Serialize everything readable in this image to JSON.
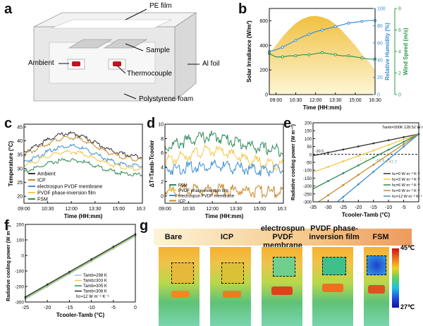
{
  "panels": {
    "a": {
      "letter": "a",
      "labels": {
        "pe_film": "PE film",
        "sample": "Sample",
        "ambient": "Ambient",
        "thermocouple": "Thermocouple",
        "al_foil": "Al foil",
        "foam": "Polystyrene foam"
      }
    },
    "b": {
      "letter": "b"
    },
    "c": {
      "letter": "c"
    },
    "d": {
      "letter": "d"
    },
    "e": {
      "letter": "e"
    },
    "f": {
      "letter": "f"
    },
    "g": {
      "letter": "g",
      "samples": [
        "Bare",
        "ICP",
        "electrospun PVDF membrane",
        "PVDF phase-inversion film",
        "FSM"
      ],
      "colorbar_max": "45℃",
      "colorbar_min": "27℃"
    }
  },
  "colors": {
    "ambient": "#333333",
    "icp": "#c8892c",
    "electrospun": "#3d8fd1",
    "pvdf": "#f2c84b",
    "fsm": "#2e8b57",
    "irradiance": "#f0c040",
    "humidity": "#3b8fd1",
    "wind": "#2e9a4e"
  },
  "chart_data": [
    {
      "id": "b",
      "type": "area",
      "xlabel": "Time (HH:mm)",
      "xticks": [
        "09:00",
        "10:30",
        "12:00",
        "13:30",
        "15:00",
        "16:30"
      ],
      "ylabel_left": "Solar Irradiance (W/m²)",
      "ylim_left": [
        0,
        700
      ],
      "yticks_left": [
        "0",
        "200",
        "400",
        "600"
      ],
      "ylabel_right1": "Relative Humidity (%)",
      "ylim_right1": [
        0,
        100
      ],
      "yticks_right1": [
        "0",
        "20",
        "40",
        "60",
        "80",
        "100"
      ],
      "ylabel_right2": "Wind Speed (m/s)",
      "ylim_right2": [
        0,
        8
      ],
      "yticks_right2": [
        "0",
        "2",
        "4",
        "6",
        "8"
      ],
      "x": [
        8.5,
        9,
        9.5,
        10,
        10.5,
        11,
        11.5,
        12,
        12.5,
        13,
        13.5,
        14,
        14.5,
        15,
        15.5,
        16,
        16.5
      ],
      "series": [
        {
          "name": "Solar Irradiance",
          "axis": "left",
          "values": [
            330,
            400,
            470,
            530,
            580,
            615,
            635,
            640,
            630,
            610,
            570,
            520,
            460,
            400,
            330,
            270,
            200
          ]
        },
        {
          "name": "Relative Humidity",
          "axis": "right1",
          "values": [
            50,
            52,
            55,
            59,
            63,
            67,
            70,
            73,
            75,
            77,
            79,
            81,
            83,
            84,
            85,
            86,
            86
          ]
        },
        {
          "name": "Wind Speed",
          "axis": "right2",
          "values": [
            3.8,
            3.5,
            3.5,
            3.6,
            3.6,
            3.7,
            3.7,
            3.8,
            3.9,
            3.8,
            3.7,
            3.6,
            3.6,
            3.5,
            3.4,
            3.3,
            3.3
          ]
        }
      ]
    },
    {
      "id": "c",
      "type": "line",
      "xlabel": "Time (HH:mm)",
      "ylabel": "Temperature (°C)",
      "xticks": [
        "09:00",
        "10:30",
        "12:00",
        "13:30",
        "15:00",
        "16:30"
      ],
      "yticks": [
        "20",
        "25",
        "30",
        "35",
        "40",
        "45"
      ],
      "ylim": [
        17.5,
        46
      ],
      "series": [
        {
          "name": "Ambient",
          "key": "ambient",
          "peak": 43,
          "base": 34.5
        },
        {
          "name": "ICP",
          "key": "icp",
          "peak": 41.5,
          "base": 33.5
        },
        {
          "name": "electrospun PVDF membrane",
          "key": "electrospun",
          "peak": 38.5,
          "base": 31
        },
        {
          "name": "PVDF phase-inversion film",
          "key": "pvdf",
          "peak": 36.5,
          "base": 30
        },
        {
          "name": "FSM",
          "key": "fsm",
          "peak": 33.5,
          "base": 28
        }
      ]
    },
    {
      "id": "d",
      "type": "line",
      "xlabel": "Time (HH:mm)",
      "ylabel": "ΔT=Tamb-Tcooler",
      "xticks": [
        "09:00",
        "10:30",
        "12:00",
        "13:30",
        "15:00",
        "16:30"
      ],
      "yticks": [
        "0",
        "2",
        "4",
        "6",
        "8",
        "10"
      ],
      "ylim": [
        -1,
        10
      ],
      "series": [
        {
          "name": "FSM",
          "key": "fsm",
          "peak": 8.7,
          "base": 6.8
        },
        {
          "name": "PVDF phase-inversion film",
          "key": "pvdf",
          "peak": 6.7,
          "base": 4.8
        },
        {
          "name": "electrospun PVDF membrane",
          "key": "electrospun",
          "peak": 4.6,
          "base": 4.0
        },
        {
          "name": "ICP",
          "key": "icp",
          "peak": 1.4,
          "base": 1.0
        }
      ]
    },
    {
      "id": "e",
      "type": "line",
      "xlabel": "Tcooler-Tamb (°C)",
      "ylabel": "Radiative cooling power (W m⁻²)",
      "xlim": [
        -35,
        0
      ],
      "ylim": [
        -300,
        200
      ],
      "xticks": [
        "-35",
        "-30",
        "-25",
        "-20",
        "-15",
        "-10",
        "-5",
        "0"
      ],
      "yticks": [
        "-300",
        "-250",
        "-200",
        "-150",
        "-100",
        "-50",
        "0",
        "50",
        "100",
        "150",
        "200"
      ],
      "annotation": "Tamb=300K 128.52 W m⁻²",
      "intercept": 128.52,
      "series": [
        {
          "name": "hc=0 W m⁻² K⁻¹",
          "h": 0,
          "key": "ambient",
          "zero_label": "-30.5"
        },
        {
          "name": "hc=3 W m⁻² K⁻¹",
          "h": 3,
          "key": "pvdf",
          "zero_label": "-17.2"
        },
        {
          "name": "hc=6 W m⁻² K⁻¹",
          "h": 6,
          "key": "fsm",
          "zero_label": "-12.1"
        },
        {
          "name": "hc=9 W m⁻² K⁻¹",
          "h": 9,
          "key": "icp",
          "zero_label": "-9.4"
        },
        {
          "name": "hc=12 W m⁻² K⁻¹",
          "h": 12,
          "key": "electrospun",
          "zero_label": "-7.7"
        }
      ]
    },
    {
      "id": "f",
      "type": "line",
      "xlabel": "Tcooler-Tamb (°C)",
      "ylabel": "Radiative cooling power (W m⁻²)",
      "xlim": [
        -25,
        0
      ],
      "ylim": [
        -300,
        200
      ],
      "xticks": [
        "-25",
        "-20",
        "-15",
        "-10",
        "-5",
        "0"
      ],
      "yticks": [
        "-300",
        "-200",
        "-100",
        "0",
        "100",
        "200"
      ],
      "note": "hc=12 W m⁻² K⁻¹",
      "series": [
        {
          "name": "Tamb=298 K",
          "intercept": 123,
          "color": "#9cc6e8"
        },
        {
          "name": "Tamb=303 K",
          "intercept": 128,
          "color": "#f2c84b"
        },
        {
          "name": "Tamb=305 K",
          "intercept": 133,
          "color": "#2e8b57"
        },
        {
          "name": "Tamb=308 K",
          "intercept": 138,
          "color": "#333333"
        }
      ]
    }
  ]
}
